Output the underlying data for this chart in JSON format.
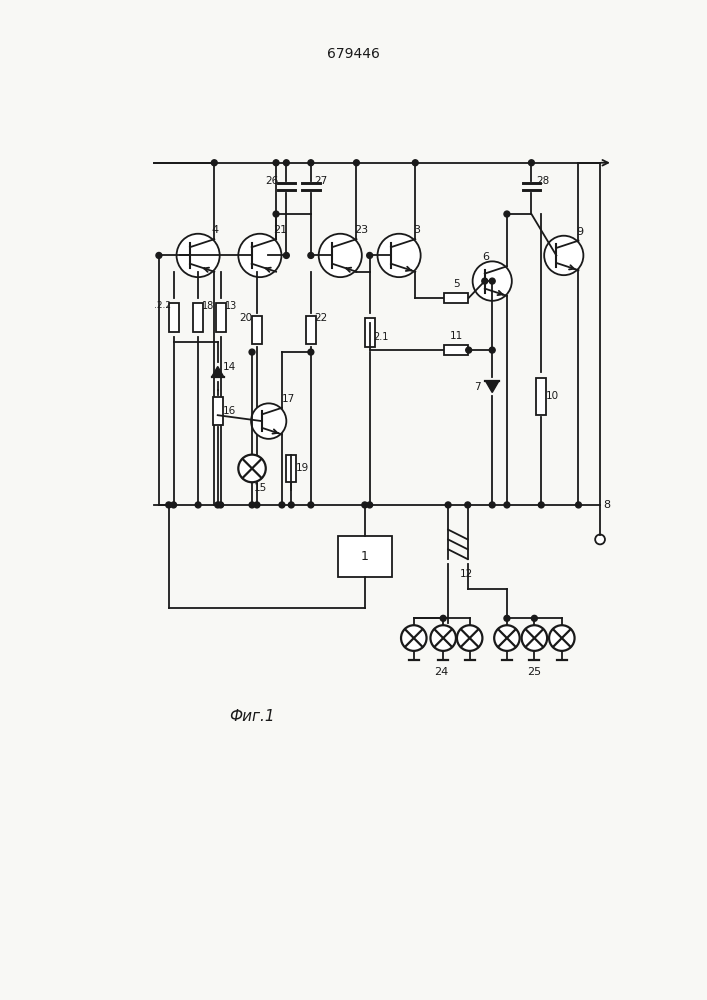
{
  "title": "679446",
  "fig_label": "Фиг.1",
  "bg_color": "#f8f8f5",
  "line_color": "#1a1a1a",
  "title_fontsize": 10,
  "label_fontsize": 7.5
}
